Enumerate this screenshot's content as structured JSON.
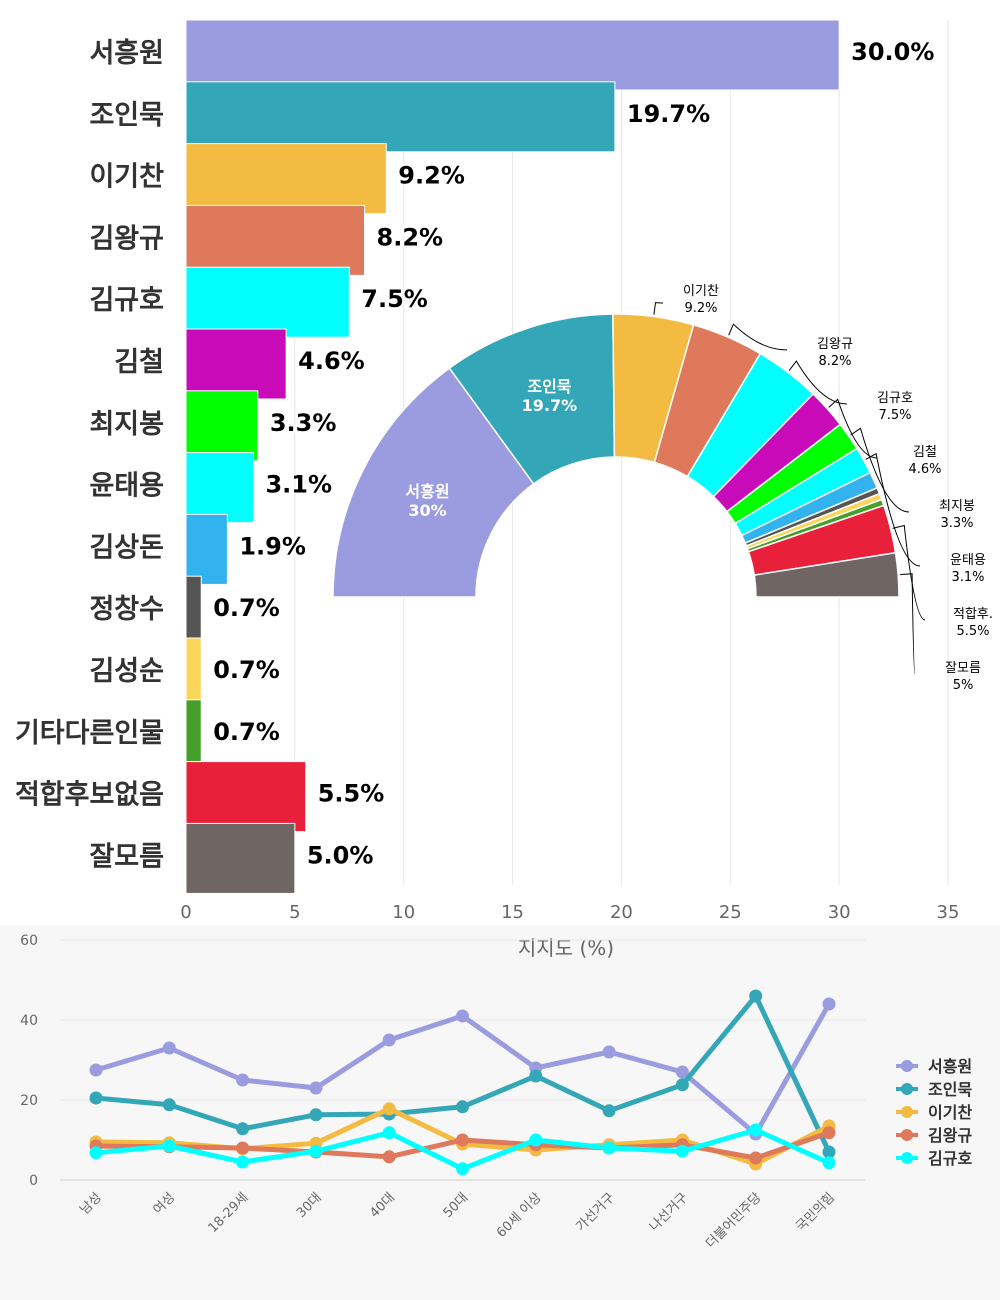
{
  "chart_data": [
    {
      "type": "bar",
      "orientation": "horizontal",
      "categories": [
        "서흥원",
        "조인묵",
        "이기찬",
        "김왕규",
        "김규호",
        "김철",
        "최지봉",
        "윤태용",
        "김상돈",
        "정창수",
        "김성순",
        "기타다른인물",
        "적합후보없음",
        "잘모름"
      ],
      "values": [
        30.0,
        19.7,
        9.2,
        8.2,
        7.5,
        4.6,
        3.3,
        3.1,
        1.9,
        0.7,
        0.7,
        0.7,
        5.5,
        5.0
      ],
      "value_labels": [
        "30.0%",
        "19.7%",
        "9.2%",
        "8.2%",
        "7.5%",
        "4.6%",
        "3.3%",
        "3.1%",
        "1.9%",
        "0.7%",
        "0.7%",
        "0.7%",
        "5.5%",
        "5.0%"
      ],
      "colors": [
        "#9b9be0",
        "#33a7b8",
        "#f3bb41",
        "#de795c",
        "#00ffff",
        "#c80ab8",
        "#00ff00",
        "#00ffff",
        "#33b2f0",
        "#555555",
        "#f9d55a",
        "#44a02b",
        "#e8203a",
        "#6f6664"
      ],
      "xlim": [
        0,
        35
      ],
      "xticks": [
        0,
        5,
        10,
        15,
        20,
        25,
        30,
        35
      ],
      "xlabel": "지지도 (%)"
    },
    {
      "type": "pie",
      "style": "semicircle-donut",
      "labels": [
        "서흥원",
        "조인묵",
        "이기찬",
        "김왕규",
        "김규호",
        "김철",
        "최지봉",
        "윤태용",
        "김상돈",
        "정창수",
        "김성순",
        "기타다른인물",
        "적합후보없음",
        "잘모름"
      ],
      "values": [
        30.0,
        19.7,
        9.2,
        8.2,
        7.5,
        4.6,
        3.3,
        3.1,
        1.9,
        0.7,
        0.7,
        0.7,
        5.5,
        5.0
      ],
      "colors": [
        "#9b9be0",
        "#33a7b8",
        "#f3bb41",
        "#de795c",
        "#00ffff",
        "#c80ab8",
        "#00ff00",
        "#00ffff",
        "#33b2f0",
        "#555555",
        "#f9d55a",
        "#44a02b",
        "#e8203a",
        "#6f6664"
      ],
      "inside_labels": [
        {
          "index": 0,
          "name": "서흥원",
          "value": "30%"
        },
        {
          "index": 1,
          "name": "조인묵",
          "value": "19.7%"
        }
      ],
      "outside_labels": [
        {
          "index": 2,
          "name": "이기찬",
          "value": "9.2%"
        },
        {
          "index": 3,
          "name": "김왕규",
          "value": "8.2%"
        },
        {
          "index": 4,
          "name": "김규호",
          "value": "7.5%"
        },
        {
          "index": 5,
          "name": "김철",
          "value": "4.6%"
        },
        {
          "index": 6,
          "name": "최지봉",
          "value": "3.3%"
        },
        {
          "index": 7,
          "name": "윤태용",
          "value": "3.1%"
        },
        {
          "index": 12,
          "name": "적합후.",
          "value": "5.5%"
        },
        {
          "index": 13,
          "name": "잘모름",
          "value": "5%"
        }
      ]
    },
    {
      "type": "line",
      "categories": [
        "남성",
        "여성",
        "18-29세",
        "30대",
        "40대",
        "50대",
        "60세 이상",
        "가선거구",
        "나선거구",
        "더불어민주당",
        "국민의힘"
      ],
      "ylim": [
        0,
        60
      ],
      "yticks": [
        0,
        20,
        40,
        60
      ],
      "series": [
        {
          "name": "서흥원",
          "color": "#9b9be0",
          "values": [
            27.5,
            33.0,
            25.0,
            23.0,
            35.0,
            41.0,
            28.0,
            32.0,
            27.0,
            11.5,
            44.0
          ]
        },
        {
          "name": "조인묵",
          "color": "#33a7b8",
          "values": [
            20.5,
            18.8,
            12.8,
            16.3,
            16.5,
            18.3,
            26.0,
            17.3,
            23.8,
            46.0,
            7.0
          ]
        },
        {
          "name": "이기찬",
          "color": "#f3bb41",
          "values": [
            9.5,
            9.3,
            7.8,
            9.2,
            17.8,
            9.0,
            7.5,
            8.8,
            10.0,
            4.0,
            13.5
          ]
        },
        {
          "name": "김왕규",
          "color": "#de795c",
          "values": [
            8.5,
            8.3,
            8.0,
            7.0,
            5.8,
            10.0,
            8.8,
            8.0,
            8.8,
            5.5,
            11.8
          ]
        },
        {
          "name": "김규호",
          "color": "#00ffff",
          "values": [
            6.8,
            8.5,
            4.5,
            7.2,
            11.8,
            2.8,
            10.0,
            8.0,
            7.2,
            12.5,
            4.3
          ]
        }
      ]
    }
  ]
}
